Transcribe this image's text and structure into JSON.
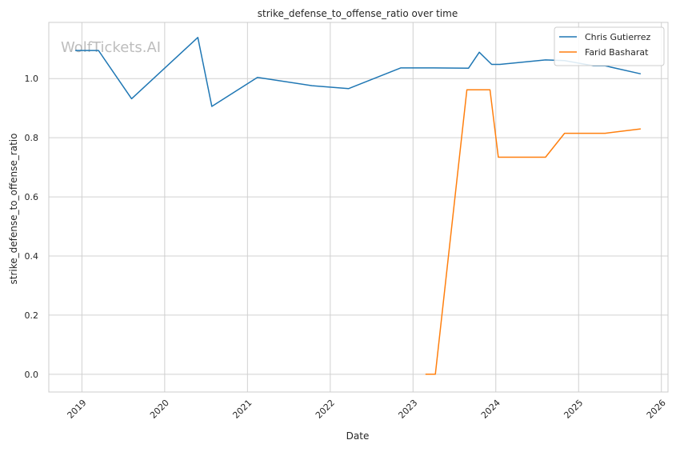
{
  "chart_data": {
    "type": "line",
    "title": "strike_defense_to_offense_ratio over time",
    "xlabel": "Date",
    "ylabel": "strike_defense_to_offense_ratio",
    "watermark": "WolfTickets.AI",
    "grid": true,
    "legend_position": "top-right",
    "x_ticks": [
      "2019",
      "2020",
      "2021",
      "2022",
      "2023",
      "2024",
      "2025",
      "2026"
    ],
    "y_ticks": [
      "0.0",
      "0.2",
      "0.4",
      "0.6",
      "0.8",
      "1.0"
    ],
    "xlim": [
      2018.6,
      2026.08
    ],
    "ylim": [
      -0.06,
      1.19
    ],
    "series": [
      {
        "name": "Chris Gutierrez",
        "color": "#1f77b4",
        "x": [
          2018.92,
          2019.2,
          2019.6,
          2020.4,
          2020.57,
          2021.12,
          2021.78,
          2022.22,
          2022.85,
          2023.25,
          2023.67,
          2023.8,
          2023.95,
          2024.05,
          2024.6,
          2024.83,
          2025.18,
          2025.32,
          2025.75
        ],
        "values": [
          1.095,
          1.095,
          0.932,
          1.139,
          0.906,
          1.004,
          0.976,
          0.966,
          1.036,
          1.036,
          1.035,
          1.089,
          1.048,
          1.048,
          1.063,
          1.061,
          1.043,
          1.043,
          1.016
        ]
      },
      {
        "name": "Farid Basharat",
        "color": "#ff7f0e",
        "x": [
          2023.15,
          2023.27,
          2023.65,
          2023.93,
          2024.03,
          2024.6,
          2024.83,
          2025.32,
          2025.75
        ],
        "values": [
          0.0,
          0.0,
          0.962,
          0.962,
          0.734,
          0.734,
          0.815,
          0.815,
          0.83
        ]
      }
    ]
  }
}
